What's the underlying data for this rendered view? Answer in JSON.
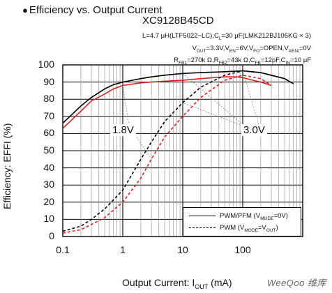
{
  "chart_data": {
    "type": "line",
    "title": "Efficiency vs. Output Current",
    "subtitle": "XC9128B45CD",
    "conditions": [
      "L=4.7 μH(LTF5022−LC),C_L=30 μF(LMK212BJ106KG × 3)",
      "V_OUT=3.3V,V_EN=6V,V_FO=OPEN,V_AEN/=0V",
      "R_FB1=270k Ω,R_FB2=43k Ω,C_FB=12pF,C_IN=10 μF"
    ],
    "xlabel": "Output Current: I_OUT (mA)",
    "ylabel": "Efficiency: EFFI (%)",
    "xscale": "log",
    "xlim": [
      0.1,
      1000
    ],
    "ylim": [
      0,
      100
    ],
    "x_ticks": [
      "0.1",
      "1",
      "10",
      "100"
    ],
    "y_ticks": [
      "0",
      "10",
      "20",
      "30",
      "40",
      "50",
      "60",
      "70",
      "80",
      "90",
      "100"
    ],
    "grid": true,
    "annotations": [
      "1.8V",
      "3.0V"
    ],
    "legend": [
      {
        "label": "PWM/PFM (V_MODE=0V)",
        "style": "solid"
      },
      {
        "label": "PWM (V_MODE=V_OUT)",
        "style": "dashed"
      }
    ],
    "series": [
      {
        "legend": "PWM/PFM (V_MODE=0V)",
        "vin": "3.0V",
        "color": "#000000",
        "style": "solid",
        "x": [
          0.1,
          0.2,
          0.3,
          0.5,
          0.7,
          1,
          2,
          3,
          5,
          10,
          20,
          50,
          100,
          200,
          500,
          700
        ],
        "y": [
          66,
          76,
          81,
          86,
          88.5,
          90,
          92,
          93,
          94,
          95,
          95.5,
          96,
          96.5,
          95.5,
          92,
          89
        ]
      },
      {
        "legend": "PWM/PFM (V_MODE=0V)",
        "vin": "1.8V",
        "color": "#dd2222",
        "style": "solid",
        "x": [
          0.1,
          0.2,
          0.3,
          0.5,
          0.7,
          1,
          2,
          3,
          5,
          10,
          20,
          50,
          80,
          100,
          150,
          200,
          300
        ],
        "y": [
          63,
          73,
          79,
          83,
          86,
          88,
          89.5,
          90,
          90.5,
          91,
          92,
          93,
          93,
          92.5,
          91,
          90,
          88
        ]
      },
      {
        "legend": "PWM (V_MODE=V_OUT)",
        "vin": "3.0V",
        "color": "#000000",
        "style": "dashed",
        "x": [
          0.1,
          0.2,
          0.3,
          0.5,
          1,
          2,
          3,
          5,
          10,
          20,
          50,
          100,
          200,
          500,
          700
        ],
        "y": [
          3,
          6,
          10,
          16,
          27,
          45,
          55,
          67,
          78,
          87,
          94,
          96.5,
          95.5,
          92,
          89
        ]
      },
      {
        "legend": "PWM (V_MODE=V_OUT)",
        "vin": "1.8V",
        "color": "#dd2222",
        "style": "dashed",
        "x": [
          0.1,
          0.2,
          0.3,
          0.5,
          1,
          2,
          3,
          5,
          10,
          20,
          50,
          100,
          200,
          300
        ],
        "y": [
          2,
          4,
          7,
          11,
          20,
          34,
          45,
          58,
          70,
          81,
          91,
          94,
          92,
          88
        ]
      }
    ]
  },
  "watermark": "WeeQoo 维库"
}
